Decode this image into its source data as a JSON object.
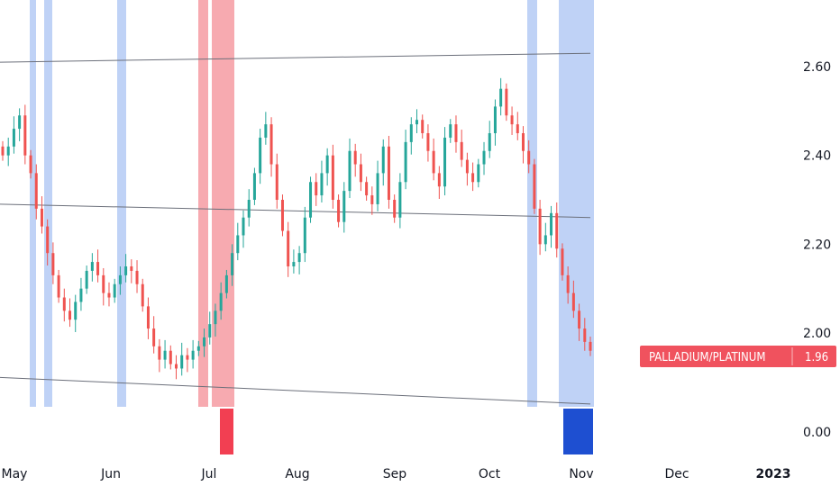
{
  "colors": {
    "up": "#26a69a",
    "down": "#ef5350",
    "band_blue": "#bfd2f6",
    "band_red": "#f7aab0",
    "channel_line": "#6b6f7a",
    "badge_bg": "#f0525e",
    "lower_red": "#f23f52",
    "lower_blue": "#1e4fd1",
    "axis_text": "#131722"
  },
  "price_badge": {
    "symbol": "PALLADIUM/PLATINUM",
    "value": "1.96"
  },
  "chart_data": {
    "type": "candlestick",
    "y_axis_ticks": [
      "2.60",
      "2.40",
      "2.20",
      "2.00"
    ],
    "ylim": [
      1.86,
      2.76
    ],
    "lower_pane_tick": "0.00",
    "x_axis_labels": [
      "May",
      "Jun",
      "Jul",
      "Aug",
      "Sep",
      "Oct",
      "Nov",
      "Dec",
      "2023"
    ],
    "highlight_bands": [
      {
        "color": "blue",
        "from": "May 01",
        "to": "May 02"
      },
      {
        "color": "blue",
        "from": "May 04",
        "to": "May 05"
      },
      {
        "color": "blue",
        "from": "May 30",
        "to": "May 31"
      },
      {
        "color": "red",
        "from": "Jun 28",
        "to": "Jun 30"
      },
      {
        "color": "red",
        "from": "Jul 01",
        "to": "Jul 07"
      },
      {
        "color": "blue",
        "from": "Oct 12",
        "to": "Oct 14"
      },
      {
        "color": "blue",
        "from": "Oct 20",
        "to": "Nov 01"
      }
    ],
    "lower_pane_bars": [
      {
        "color": "red",
        "from": "Jul 04",
        "to": "Jul 06",
        "value": 1
      },
      {
        "color": "blue",
        "from": "Oct 23",
        "to": "Nov 01",
        "value": 1
      }
    ],
    "channel_lines": [
      {
        "name": "upper",
        "start": 2.61,
        "end": 2.63
      },
      {
        "name": "middle",
        "start": 2.29,
        "end": 2.26
      },
      {
        "name": "lower",
        "start": 1.9,
        "end": 1.84
      }
    ],
    "close_series": [
      2.4,
      2.42,
      2.46,
      2.49,
      2.4,
      2.36,
      2.28,
      2.24,
      2.18,
      2.13,
      2.08,
      2.05,
      2.03,
      2.07,
      2.1,
      2.14,
      2.16,
      2.13,
      2.09,
      2.08,
      2.11,
      2.13,
      2.15,
      2.14,
      2.11,
      2.06,
      2.01,
      1.97,
      1.94,
      1.96,
      1.93,
      1.92,
      1.95,
      1.94,
      1.96,
      1.97,
      1.99,
      2.02,
      2.05,
      2.09,
      2.13,
      2.18,
      2.22,
      2.26,
      2.3,
      2.36,
      2.44,
      2.47,
      2.38,
      2.3,
      2.23,
      2.15,
      2.16,
      2.18,
      2.26,
      2.34,
      2.31,
      2.36,
      2.4,
      2.3,
      2.25,
      2.32,
      2.41,
      2.38,
      2.34,
      2.31,
      2.29,
      2.36,
      2.42,
      2.3,
      2.26,
      2.34,
      2.43,
      2.47,
      2.48,
      2.45,
      2.41,
      2.36,
      2.33,
      2.44,
      2.47,
      2.43,
      2.39,
      2.36,
      2.34,
      2.38,
      2.41,
      2.45,
      2.51,
      2.55,
      2.49,
      2.47,
      2.45,
      2.41,
      2.38,
      2.28,
      2.2,
      2.22,
      2.27,
      2.19,
      2.13,
      2.09,
      2.05,
      2.01,
      1.98,
      1.96
    ]
  }
}
